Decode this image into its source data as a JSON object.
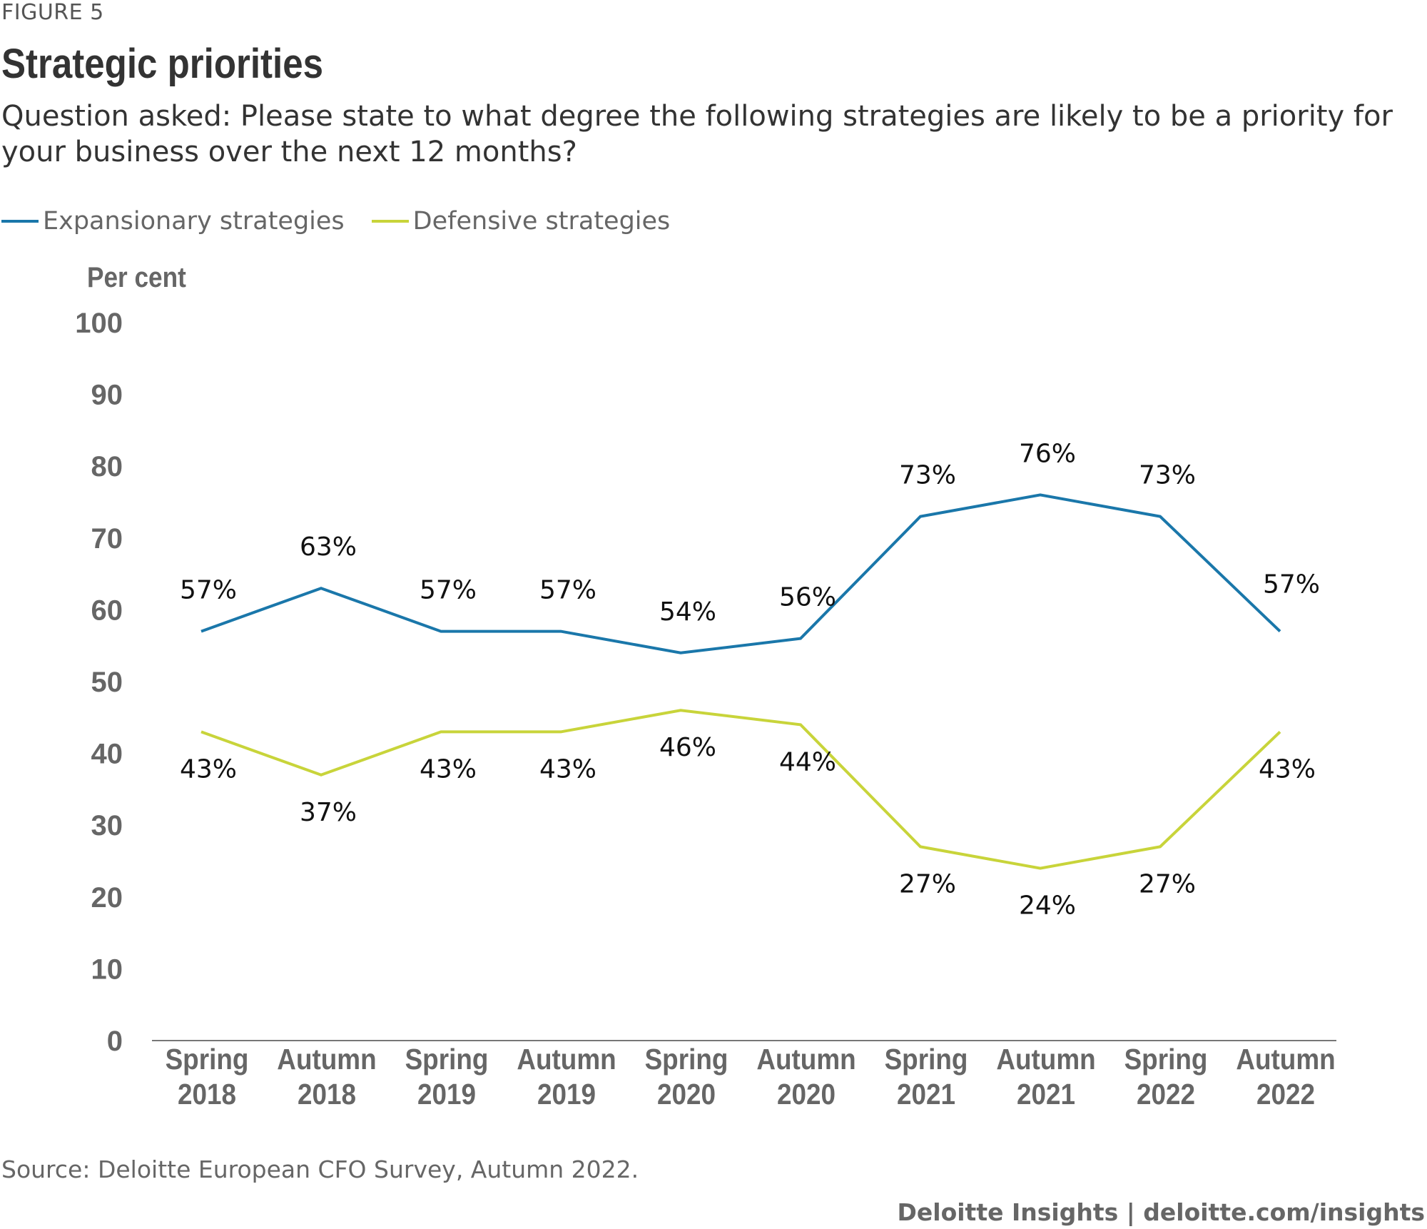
{
  "figure_label": "FIGURE 5",
  "title": "Strategic priorities",
  "subtitle": "Question asked: Please state to what degree the following strategies are likely to be a priority for your business over the next 12 months?",
  "source": "Source: Deloitte European CFO Survey, Autumn 2022.",
  "credit": "Deloitte Insights | deloitte.com/insights",
  "colors": {
    "expansionary": "#1a77aa",
    "defensive": "#c8d43a",
    "axis": "#777777"
  },
  "chart_data": {
    "type": "line",
    "ylabel": "Per cent",
    "ylim": [
      0,
      100
    ],
    "yticks": [
      0,
      10,
      20,
      30,
      40,
      50,
      60,
      70,
      80,
      90,
      100
    ],
    "categories": [
      [
        "Spring",
        "2018"
      ],
      [
        "Autumn",
        "2018"
      ],
      [
        "Spring",
        "2019"
      ],
      [
        "Autumn",
        "2019"
      ],
      [
        "Spring",
        "2020"
      ],
      [
        "Autumn",
        "2020"
      ],
      [
        "Spring",
        "2021"
      ],
      [
        "Autumn",
        "2021"
      ],
      [
        "Spring",
        "2022"
      ],
      [
        "Autumn",
        "2022"
      ]
    ],
    "series": [
      {
        "name": "Expansionary strategies",
        "values": [
          57,
          63,
          57,
          57,
          54,
          56,
          73,
          76,
          73,
          57
        ],
        "labels": [
          "57%",
          "63%",
          "57%",
          "57%",
          "54%",
          "56%",
          "73%",
          "76%",
          "73%",
          "57%"
        ]
      },
      {
        "name": "Defensive strategies",
        "values": [
          43,
          37,
          43,
          43,
          46,
          44,
          27,
          24,
          27,
          43
        ],
        "labels": [
          "43%",
          "37%",
          "43%",
          "43%",
          "46%",
          "44%",
          "27%",
          "24%",
          "27%",
          "43%"
        ]
      }
    ],
    "grid": false,
    "legend": "top-left"
  }
}
